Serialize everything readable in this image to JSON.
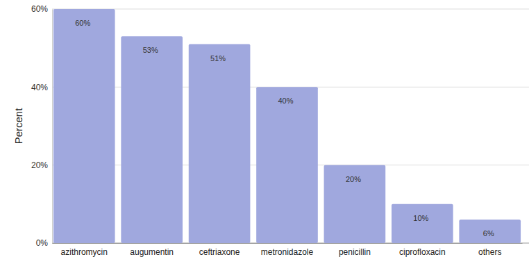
{
  "chart_data": {
    "type": "bar",
    "y_label": "Percent",
    "categories": [
      "azithromycin",
      "augumentin",
      "ceftriaxone",
      "metronidazole",
      "penicillin",
      "ciprofloxacin",
      "others"
    ],
    "values": [
      60,
      53,
      51,
      40,
      20,
      10,
      6
    ],
    "value_labels": [
      "60%",
      "53%",
      "51%",
      "40%",
      "20%",
      "10%",
      "6%"
    ],
    "color": "#a0a8de",
    "ylim": [
      0,
      60
    ],
    "yticks": [
      {
        "value": 0,
        "label": "0%"
      },
      {
        "value": 20,
        "label": "20%"
      },
      {
        "value": 40,
        "label": "40%"
      },
      {
        "value": 60,
        "label": "60%"
      }
    ],
    "grid": true,
    "data_labels": true
  }
}
